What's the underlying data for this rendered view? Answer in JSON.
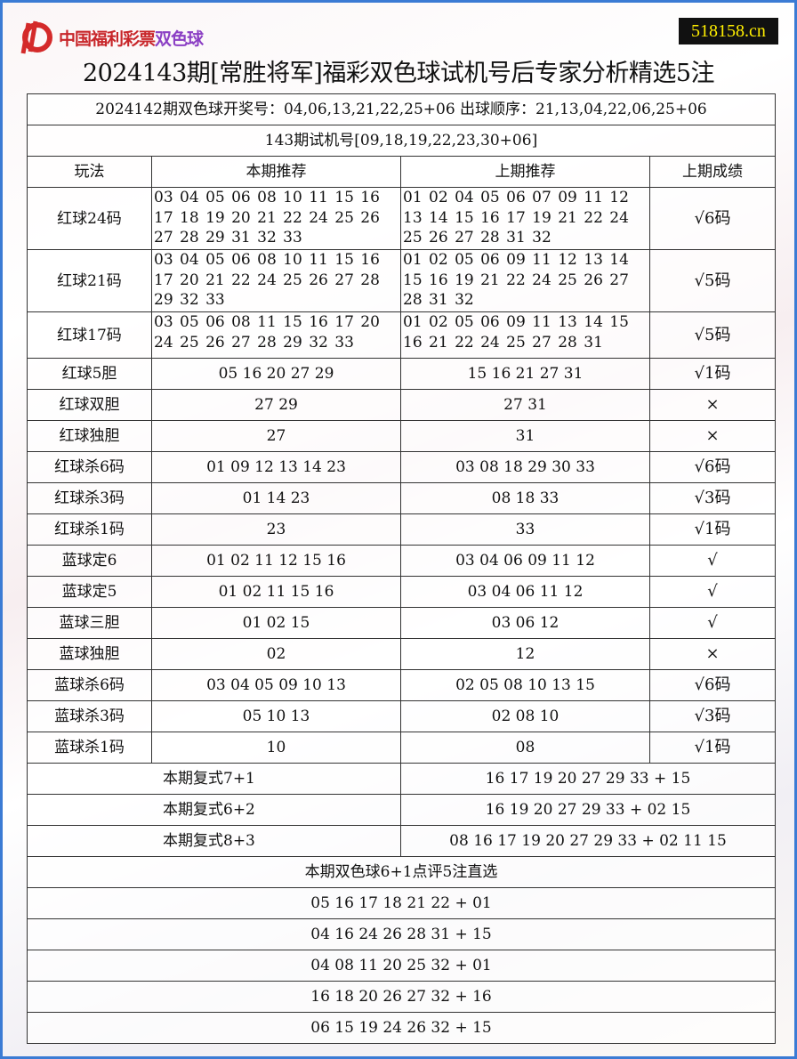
{
  "header": {
    "logo_text": "中国福利彩票",
    "logo_text_accent": "双色球",
    "site": "518158.cn",
    "title": "2024143期[常胜将军]福彩双色球试机号后专家分析精选5注"
  },
  "info": {
    "draw": "2024142期双色球开奖号：04,06,13,21,22,25+06 出球顺序：21,13,04,22,06,25+06",
    "test": "143期试机号[09,18,19,22,23,30+06]"
  },
  "columns": [
    "玩法",
    "本期推荐",
    "上期推荐",
    "上期成绩"
  ],
  "rows": [
    {
      "name": "红球24码",
      "cur": "03 04 05 06 08 10 11 15 16 17 18 19 20 21 22 24 25 26 27 28 29 31 32 33",
      "prev": "01 02 04 05 06 07 09 11 12 13 14 15 16 17 19 21 22 24 25 26 27 28 31 32",
      "result": "√6码",
      "multi": 3
    },
    {
      "name": "红球21码",
      "cur": "03 04 05 06 08 10 11 15 16 17 20 21 22 24 25 26 27 28 29 32 33",
      "prev": "01 02 05 06 09 11 12 13 14 15 16 19 21 22 24 25 26 27 28 31 32",
      "result": "√5码",
      "multi": 3
    },
    {
      "name": "红球17码",
      "cur": "03 05 06 08 11 15 16 17 20 24 25 26 27 28 29 32 33",
      "prev": "01 02 05 06 09 11 13 14 15 16 21 22 24 25 27 28 31",
      "result": "√5码",
      "multi": 2
    },
    {
      "name": "红球5胆",
      "cur": "05 16 20 27 29",
      "prev": "15 16 21 27 31",
      "result": "√1码"
    },
    {
      "name": "红球双胆",
      "cur": "27 29",
      "prev": "27 31",
      "result": "×"
    },
    {
      "name": "红球独胆",
      "cur": "27",
      "prev": "31",
      "result": "×"
    },
    {
      "name": "红球杀6码",
      "cur": "01 09 12 13 14 23",
      "prev": "03 08 18 29 30 33",
      "result": "√6码"
    },
    {
      "name": "红球杀3码",
      "cur": "01 14 23",
      "prev": "08 18 33",
      "result": "√3码"
    },
    {
      "name": "红球杀1码",
      "cur": "23",
      "prev": "33",
      "result": "√1码"
    },
    {
      "name": "蓝球定6",
      "cur": "01 02 11 12 15 16",
      "prev": "03 04 06 09 11 12",
      "result": "√"
    },
    {
      "name": "蓝球定5",
      "cur": "01 02 11 15 16",
      "prev": "03 04 06 11 12",
      "result": "√"
    },
    {
      "name": "蓝球三胆",
      "cur": "01 02 15",
      "prev": "03 06 12",
      "result": "√"
    },
    {
      "name": "蓝球独胆",
      "cur": "02",
      "prev": "12",
      "result": "×"
    },
    {
      "name": "蓝球杀6码",
      "cur": "03 04 05 09 10 13",
      "prev": "02 05 08 10 13 15",
      "result": "√6码"
    },
    {
      "name": "蓝球杀3码",
      "cur": "05 10 13",
      "prev": "02 08 10",
      "result": "√3码"
    },
    {
      "name": "蓝球杀1码",
      "cur": "10",
      "prev": "08",
      "result": "√1码"
    }
  ],
  "combos": [
    {
      "label": "本期复式7+1",
      "value": "16 17 19 20 27 29 33 + 15"
    },
    {
      "label": "本期复式6+2",
      "value": "16 19 20 27 29 33 + 02 15"
    },
    {
      "label": "本期复式8+3",
      "value": "08 16 17 19 20 27 29 33 + 02 11 15"
    }
  ],
  "picks_title": "本期双色球6+1点评5注直选",
  "picks": [
    "05 16 17 18 21 22 + 01",
    "04 16 24 26 28 31 + 15",
    "04 08 11 20 25 32 + 01",
    "16 18 20 26 27 32 + 16",
    "06 15 19 24 26 32 + 15"
  ]
}
